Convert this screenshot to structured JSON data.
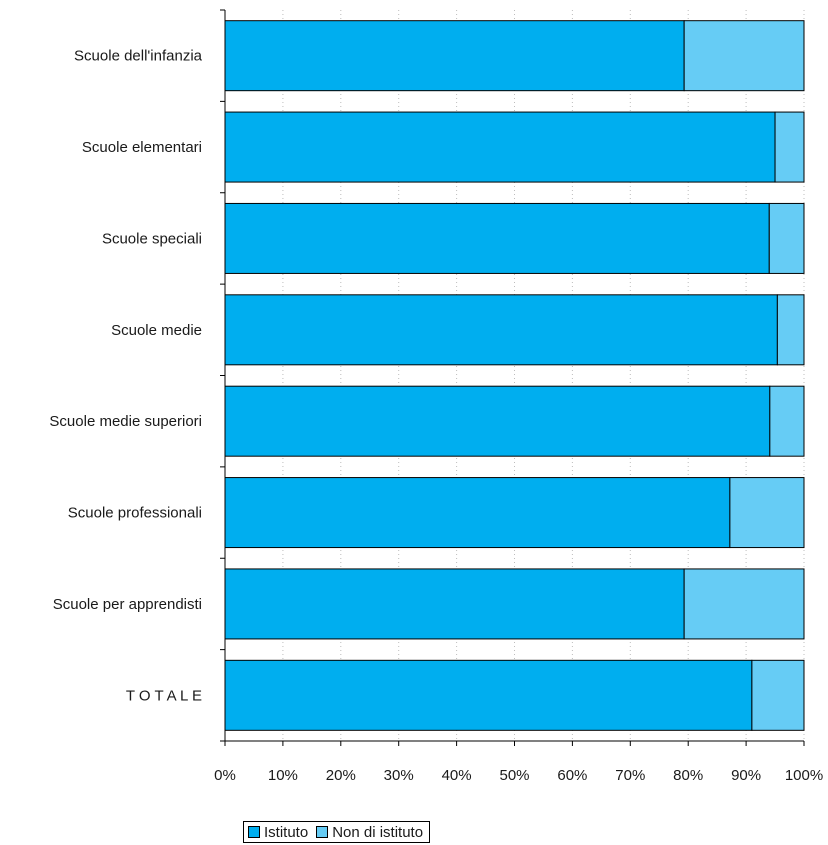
{
  "chart_data": {
    "type": "bar",
    "orientation": "horizontal",
    "stacked": "percent",
    "categories": [
      "Scuole dell'infanzia",
      "Scuole elementari",
      "Scuole speciali",
      "Scuole medie",
      "Scuole medie superiori",
      "Scuole professionali",
      "Scuole per apprendisti",
      "T O T A L E"
    ],
    "series": [
      {
        "name": "Istituto",
        "color": "#00aeef",
        "values": [
          79.3,
          95.0,
          94.0,
          95.4,
          94.1,
          87.2,
          79.3,
          91.0
        ]
      },
      {
        "name": "Non di istituto",
        "color": "#66ccf5",
        "values": [
          20.7,
          5.0,
          6.0,
          4.6,
          5.9,
          12.8,
          20.7,
          9.0
        ]
      }
    ],
    "xlim": [
      0,
      100
    ],
    "x_ticks": [
      "0%",
      "10%",
      "20%",
      "30%",
      "40%",
      "50%",
      "60%",
      "70%",
      "80%",
      "90%",
      "100%"
    ],
    "grid": "vertical-dotted",
    "legend_position": "bottom",
    "title": "",
    "xlabel": "",
    "ylabel": ""
  }
}
